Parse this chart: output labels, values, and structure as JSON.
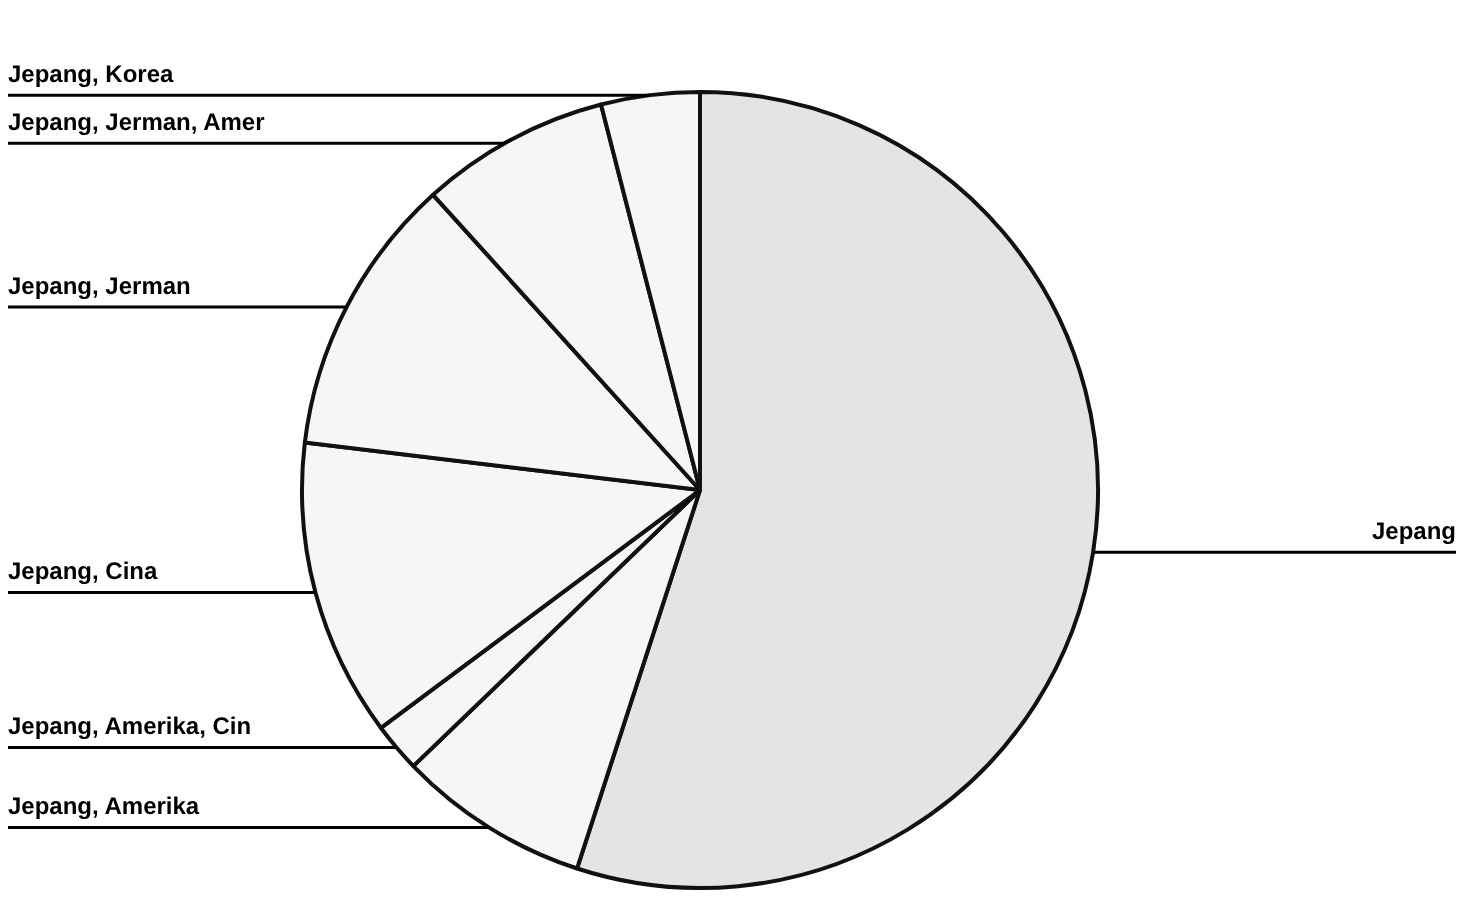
{
  "chart_data": {
    "type": "pie",
    "categories": [
      "Jepang",
      "Jepang, Amerika",
      "Jepang, Amerika, Cin",
      "Jepang, Cina",
      "Jepang, Jerman",
      "Jepang, Jerman, Amer",
      "Jepang, Korea"
    ],
    "values": [
      55,
      7.8,
      2,
      12.1,
      11.4,
      7.7,
      4
    ],
    "colors": [
      "#e4e4e4",
      "#f6f6f6",
      "#f6f6f6",
      "#f6f6f6",
      "#f6f6f6",
      "#f6f6f6",
      "#f6f6f6"
    ],
    "legend": false
  }
}
